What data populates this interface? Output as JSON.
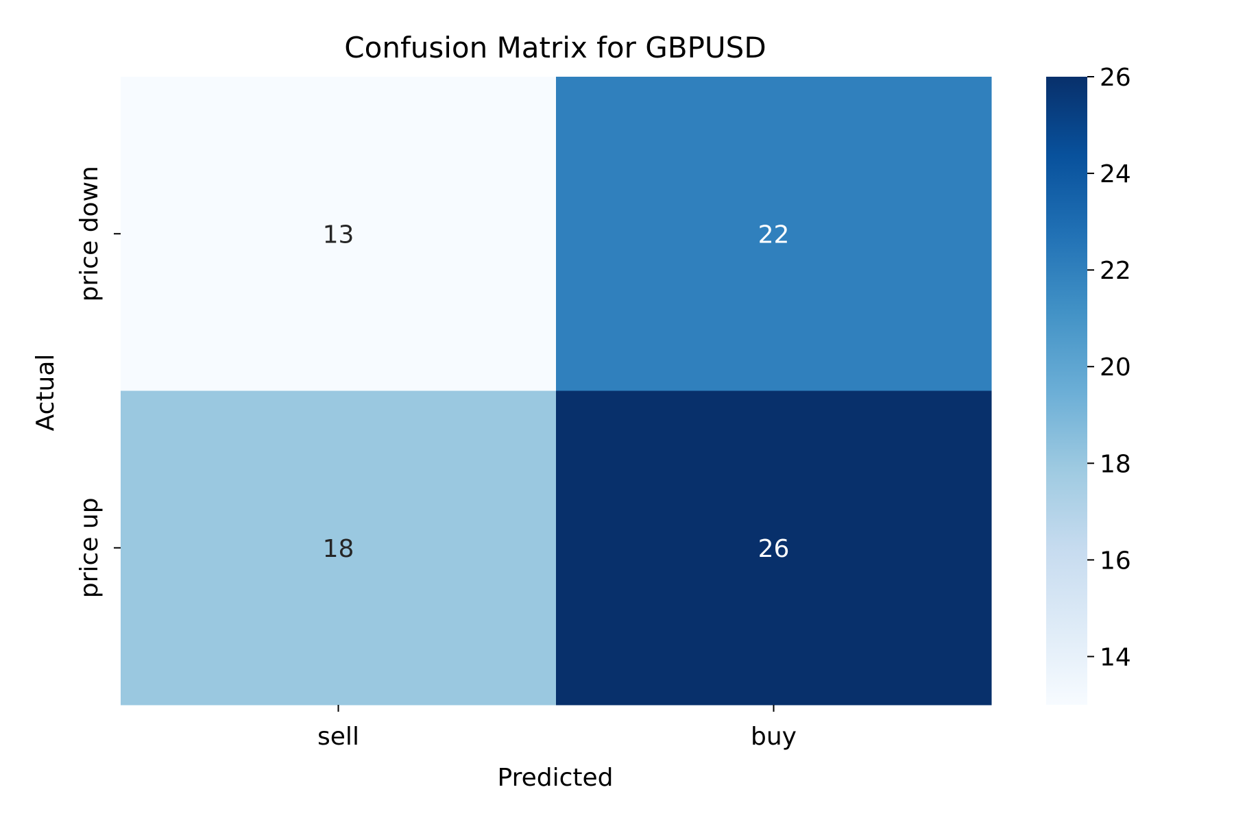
{
  "chart_data": {
    "type": "heatmap",
    "title": "Confusion Matrix for GBPUSD",
    "xlabel": "Predicted",
    "ylabel": "Actual",
    "x_categories": [
      "sell",
      "buy"
    ],
    "y_categories": [
      "price down",
      "price up"
    ],
    "values": [
      [
        13,
        22
      ],
      [
        18,
        26
      ]
    ],
    "colormap": "Blues",
    "color_range": [
      13,
      26
    ],
    "colorbar_ticks": [
      14,
      16,
      18,
      20,
      22,
      24,
      26
    ],
    "colors": {
      "low": "#f7fbff",
      "high": "#08306b",
      "text_light": "#ffffff",
      "text_dark": "#262626"
    },
    "grid": false,
    "legend": "colorbar-right"
  }
}
